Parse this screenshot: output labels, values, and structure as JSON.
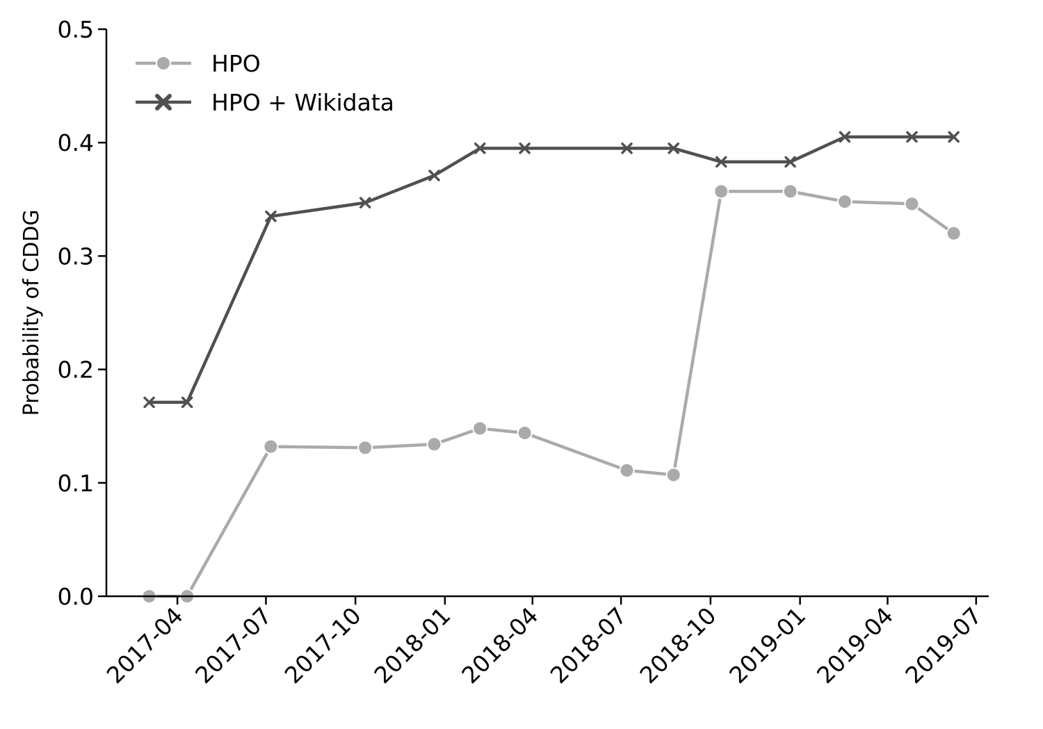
{
  "chart_data": {
    "type": "line",
    "ylabel": "Probability of CDDG",
    "xlabel": "",
    "xlim": [
      "2017-01-18",
      "2019-07-14"
    ],
    "ylim": [
      0,
      0.5
    ],
    "x_tick_labels": [
      "2017-04",
      "2017-07",
      "2017-10",
      "2018-01",
      "2018-04",
      "2018-07",
      "2018-10",
      "2019-01",
      "2019-04",
      "2019-07"
    ],
    "y_tick_labels": [
      "0.0",
      "0.1",
      "0.2",
      "0.3",
      "0.4",
      "0.5"
    ],
    "grid": false,
    "legend_position": "top-left",
    "x": [
      "2017-03-03",
      "2017-04-11",
      "2017-07-06",
      "2017-10-11",
      "2017-12-21",
      "2018-02-06",
      "2018-03-24",
      "2018-07-07",
      "2018-08-24",
      "2018-10-12",
      "2018-12-22",
      "2019-02-16",
      "2019-04-26",
      "2019-06-08"
    ],
    "series": [
      {
        "name": "HPO",
        "color": "#aaaaaa",
        "marker": "circle",
        "values": [
          0.0,
          0.0,
          0.132,
          0.131,
          0.134,
          0.148,
          0.144,
          0.111,
          0.107,
          0.357,
          0.357,
          0.348,
          0.346,
          0.32
        ]
      },
      {
        "name": "HPO + Wikidata",
        "color": "#505050",
        "marker": "x",
        "values": [
          0.171,
          0.171,
          0.335,
          0.347,
          0.371,
          0.395,
          0.395,
          0.395,
          0.395,
          0.383,
          0.383,
          0.405,
          0.405,
          0.405
        ]
      }
    ]
  }
}
